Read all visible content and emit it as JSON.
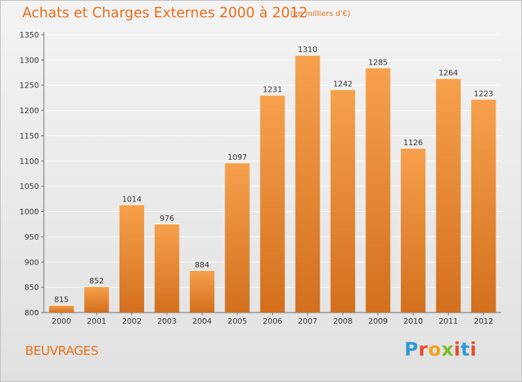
{
  "header": {
    "title": "Achats et Charges Externes 2000 à 2012",
    "subtitle": "(en milliers d'€)"
  },
  "footer": {
    "commune": "BEUVRAGES",
    "logo_text": "Proxiti",
    "logo_colors": [
      "#2e9ad6",
      "#e84c2b",
      "#f2a21b",
      "#7dbb2e",
      "#e84c2b",
      "#2e9ad6",
      "#e84c2b"
    ]
  },
  "colors": {
    "bar_top": "#f7a14d",
    "bar_bottom": "#d36f1d",
    "accent": "#e76f1c"
  },
  "chart_data": {
    "type": "bar",
    "categories": [
      "2000",
      "2001",
      "2002",
      "2003",
      "2004",
      "2005",
      "2006",
      "2007",
      "2008",
      "2009",
      "2010",
      "2011",
      "2012"
    ],
    "values": [
      815,
      852,
      1014,
      976,
      884,
      1097,
      1231,
      1310,
      1242,
      1285,
      1126,
      1264,
      1223
    ],
    "ylim": [
      800,
      1350
    ],
    "yticks": [
      800,
      850,
      900,
      950,
      1000,
      1050,
      1100,
      1150,
      1200,
      1250,
      1300,
      1350
    ],
    "grid": true,
    "data_labels": true
  }
}
